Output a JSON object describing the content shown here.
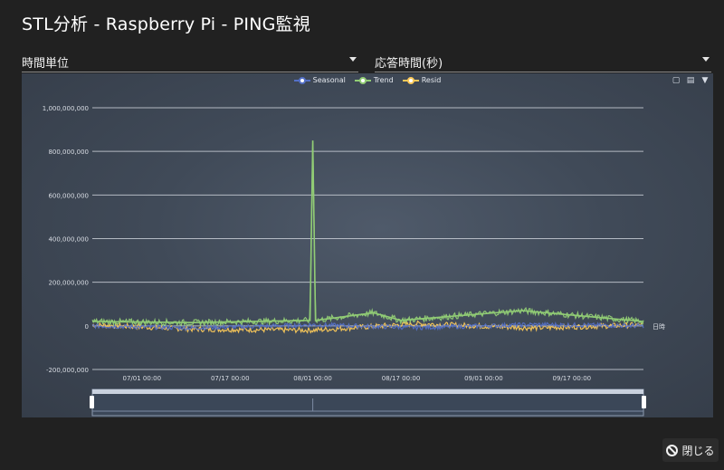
{
  "dialog": {
    "title": "STL分析 - Raspberry Pi - PING監視",
    "close_label": "閉じる"
  },
  "controls": {
    "unit_select": "時間単位",
    "metric_select": "応答時間(秒)"
  },
  "toolbox": [
    "save-icon",
    "data-view-icon",
    "restore-icon"
  ],
  "colors": {
    "seasonal": "#5470c6",
    "trend": "#91cc75",
    "resid": "#fac858"
  },
  "chart_data": {
    "type": "line",
    "legend_position": "top-center",
    "grid": true,
    "xlabel": "日時",
    "ylabel": "",
    "ylim": [
      -200000000,
      1000000000
    ],
    "y_ticks": [
      "1,000,000,000",
      "800,000,000",
      "600,000,000",
      "400,000,000",
      "200,000,000",
      "0",
      "-200,000,000"
    ],
    "y_tick_values": [
      1000000000,
      800000000,
      600000000,
      400000000,
      200000000,
      0,
      -200000000
    ],
    "x_ticks": [
      "07/01 00:00",
      "07/17 00:00",
      "08/01 00:00",
      "08/17 00:00",
      "09/01 00:00",
      "09/17 00:00"
    ],
    "x_range": [
      "06/22 00:00",
      "09/30 00:00"
    ],
    "series": [
      {
        "name": "Seasonal",
        "color": "#5470c6",
        "points": [
          [
            "06/22 00:00",
            0
          ],
          [
            "07/10 00:00",
            -10000000
          ],
          [
            "08/01 00:00",
            5000000
          ],
          [
            "08/20 00:00",
            -8000000
          ],
          [
            "09/10 00:00",
            6000000
          ],
          [
            "09/30 00:00",
            0
          ]
        ]
      },
      {
        "name": "Trend",
        "color": "#91cc75",
        "points": [
          [
            "06/22 00:00",
            20000000
          ],
          [
            "07/10 00:00",
            15000000
          ],
          [
            "07/31 12:00",
            25000000
          ],
          [
            "08/01 00:00",
            850000000
          ],
          [
            "08/01 12:00",
            25000000
          ],
          [
            "08/12 00:00",
            60000000
          ],
          [
            "08/17 00:00",
            25000000
          ],
          [
            "09/08 00:00",
            70000000
          ],
          [
            "09/30 00:00",
            20000000
          ]
        ]
      },
      {
        "name": "Resid",
        "color": "#fac858",
        "points": [
          [
            "06/22 00:00",
            5000000
          ],
          [
            "07/10 00:00",
            -15000000
          ],
          [
            "08/01 00:00",
            -20000000
          ],
          [
            "08/20 00:00",
            10000000
          ],
          [
            "09/10 00:00",
            -10000000
          ],
          [
            "09/30 00:00",
            5000000
          ]
        ]
      }
    ]
  }
}
